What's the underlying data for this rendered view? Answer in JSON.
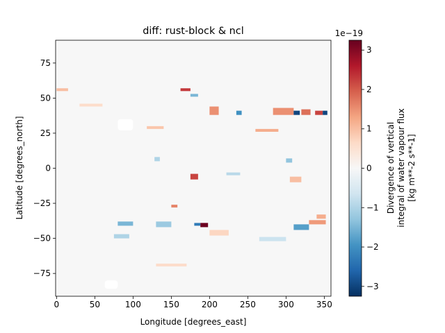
{
  "chart_data": {
    "type": "heatmap",
    "title": "diff: rust-block & ncl",
    "xlabel": "Longitude [degrees_east]",
    "ylabel": "Latitude [degrees_north]",
    "xlim": [
      -1.25,
      358.75
    ],
    "ylim": [
      -91.25,
      91.25
    ],
    "x_ticks": [
      0,
      50,
      100,
      150,
      200,
      250,
      300,
      350
    ],
    "x_tick_labels": [
      "0",
      "50",
      "100",
      "150",
      "200",
      "250",
      "300",
      "350"
    ],
    "y_ticks": [
      75,
      50,
      25,
      0,
      -25,
      -50,
      -75
    ],
    "y_tick_labels": [
      "75",
      "50",
      "25",
      "0",
      "−25",
      "−50",
      "−75"
    ],
    "colorbar": {
      "label_lines": [
        "Divergence of vertical",
        "integral of water vapour flux",
        "[kg m**-2 s**-1]"
      ],
      "offset_text": "1e−19",
      "vmin": -3.25,
      "vmax": 3.25,
      "ticks": [
        3,
        2,
        1,
        0,
        -1,
        -2,
        -3
      ],
      "tick_labels": [
        "3",
        "2",
        "1",
        "0",
        "−1",
        "−2",
        "−3"
      ],
      "colormap": "RdBu_r",
      "colormap_stops": [
        "#053061",
        "#2166ac",
        "#4393c3",
        "#92c5de",
        "#d1e5f0",
        "#f7f7f7",
        "#fddbc7",
        "#f4a582",
        "#d6604d",
        "#b2182b",
        "#67001f"
      ]
    },
    "background_value": 0,
    "nan_regions": [
      {
        "lon": [
          80,
          100
        ],
        "lat": [
          27,
          35
        ]
      },
      {
        "lon": [
          63,
          80
        ],
        "lat": [
          -86,
          -80
        ]
      }
    ],
    "features": [
      {
        "lon": [
          162,
          175
        ],
        "lat": [
          55,
          57
        ],
        "value": 2.3
      },
      {
        "lon": [
          175,
          185
        ],
        "lat": [
          51,
          53
        ],
        "value": -1.5
      },
      {
        "lon": [
          200,
          212
        ],
        "lat": [
          38,
          44
        ],
        "value": 1.5
      },
      {
        "lon": [
          235,
          242
        ],
        "lat": [
          38,
          41
        ],
        "value": -2.0
      },
      {
        "lon": [
          283,
          310
        ],
        "lat": [
          38,
          43
        ],
        "value": 1.5
      },
      {
        "lon": [
          310,
          318
        ],
        "lat": [
          38,
          41
        ],
        "value": -3.0
      },
      {
        "lon": [
          320,
          332
        ],
        "lat": [
          38,
          42
        ],
        "value": 1.8
      },
      {
        "lon": [
          338,
          348
        ],
        "lat": [
          38,
          41
        ],
        "value": 2.2
      },
      {
        "lon": [
          348,
          354
        ],
        "lat": [
          38,
          41
        ],
        "value": -3.0
      },
      {
        "lon": [
          118,
          140
        ],
        "lat": [
          28,
          30
        ],
        "value": 0.9
      },
      {
        "lon": [
          260,
          290
        ],
        "lat": [
          26,
          28
        ],
        "value": 1.2
      },
      {
        "lon": [
          175,
          185
        ],
        "lat": [
          -8,
          -4
        ],
        "value": 2.2
      },
      {
        "lon": [
          222,
          240
        ],
        "lat": [
          -5,
          -3
        ],
        "value": -0.9
      },
      {
        "lon": [
          305,
          320
        ],
        "lat": [
          -10,
          -6
        ],
        "value": 1.0
      },
      {
        "lon": [
          128,
          135
        ],
        "lat": [
          5,
          8
        ],
        "value": -1.0
      },
      {
        "lon": [
          300,
          308
        ],
        "lat": [
          4,
          7
        ],
        "value": -1.3
      },
      {
        "lon": [
          150,
          158
        ],
        "lat": [
          -28,
          -26
        ],
        "value": 1.6
      },
      {
        "lon": [
          188,
          198
        ],
        "lat": [
          -42,
          -39
        ],
        "value": 3.2
      },
      {
        "lon": [
          180,
          188
        ],
        "lat": [
          -41,
          -39
        ],
        "value": -2.3
      },
      {
        "lon": [
          80,
          100
        ],
        "lat": [
          -41,
          -38
        ],
        "value": -1.5
      },
      {
        "lon": [
          130,
          150
        ],
        "lat": [
          -42,
          -38
        ],
        "value": -1.2
      },
      {
        "lon": [
          310,
          330
        ],
        "lat": [
          -44,
          -40
        ],
        "value": -1.8
      },
      {
        "lon": [
          330,
          352
        ],
        "lat": [
          -40,
          -37
        ],
        "value": 1.4
      },
      {
        "lon": [
          340,
          352
        ],
        "lat": [
          -36,
          -33
        ],
        "value": 1.2
      },
      {
        "lon": [
          200,
          225
        ],
        "lat": [
          -48,
          -44
        ],
        "value": 0.7
      },
      {
        "lon": [
          75,
          95
        ],
        "lat": [
          -50,
          -47
        ],
        "value": -1.0
      },
      {
        "lon": [
          265,
          300
        ],
        "lat": [
          -52,
          -49
        ],
        "value": -0.7
      },
      {
        "lon": [
          0,
          15
        ],
        "lat": [
          55,
          57
        ],
        "value": 1.0
      },
      {
        "lon": [
          30,
          60
        ],
        "lat": [
          44,
          46
        ],
        "value": 0.6
      },
      {
        "lon": [
          130,
          170
        ],
        "lat": [
          -70,
          -68
        ],
        "value": 0.6
      }
    ]
  }
}
